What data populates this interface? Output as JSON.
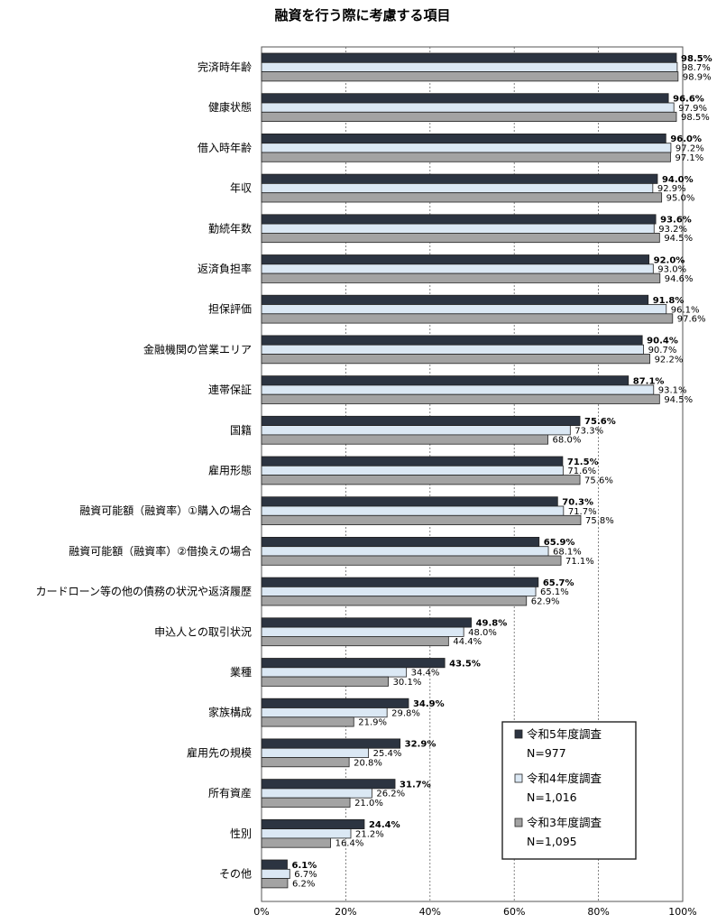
{
  "chart_data": {
    "type": "bar",
    "orientation": "horizontal",
    "title": "融資を行う際に考慮する項目",
    "xlim": [
      0,
      100
    ],
    "x_ticks": [
      "0%",
      "20%",
      "40%",
      "60%",
      "80%",
      "100%"
    ],
    "grid": "vertical dashed",
    "legend_position": "bottom-right",
    "categories": [
      "完済時年齢",
      "健康状態",
      "借入時年齢",
      "年収",
      "勤続年数",
      "返済負担率",
      "担保評価",
      "金融機関の営業エリア",
      "連帯保証",
      "国籍",
      "雇用形態",
      "融資可能額（融資率）①購入の場合",
      "融資可能額（融資率）②借換えの場合",
      "カードローン等の他の債務の状況や返済履歴",
      "申込人との取引状況",
      "業種",
      "家族構成",
      "雇用先の規模",
      "所有資産",
      "性別",
      "その他"
    ],
    "series": [
      {
        "name": "令和5年度調査",
        "n": "N=977",
        "color": "#2c3441",
        "labels_bold": true,
        "values": [
          98.5,
          96.6,
          96.0,
          94.0,
          93.6,
          92.0,
          91.8,
          90.4,
          87.1,
          75.6,
          71.5,
          70.3,
          65.9,
          65.7,
          49.8,
          43.5,
          34.9,
          32.9,
          31.7,
          24.4,
          6.1
        ]
      },
      {
        "name": "令和4年度調査",
        "n": "N=1,016",
        "color": "#dbe8f4",
        "labels_bold": false,
        "values": [
          98.7,
          97.9,
          97.2,
          92.9,
          93.2,
          93.0,
          96.1,
          90.7,
          93.1,
          73.3,
          71.6,
          71.7,
          68.1,
          65.1,
          48.0,
          34.4,
          29.8,
          25.4,
          26.2,
          21.2,
          6.7
        ]
      },
      {
        "name": "令和3年度調査",
        "n": "N=1,095",
        "color": "#a3a3a3",
        "labels_bold": false,
        "values": [
          98.9,
          98.5,
          97.1,
          95.0,
          94.5,
          94.6,
          97.6,
          92.2,
          94.5,
          68.0,
          75.6,
          75.8,
          71.1,
          62.9,
          44.4,
          30.1,
          21.9,
          20.8,
          21.0,
          16.4,
          6.2
        ]
      }
    ]
  }
}
